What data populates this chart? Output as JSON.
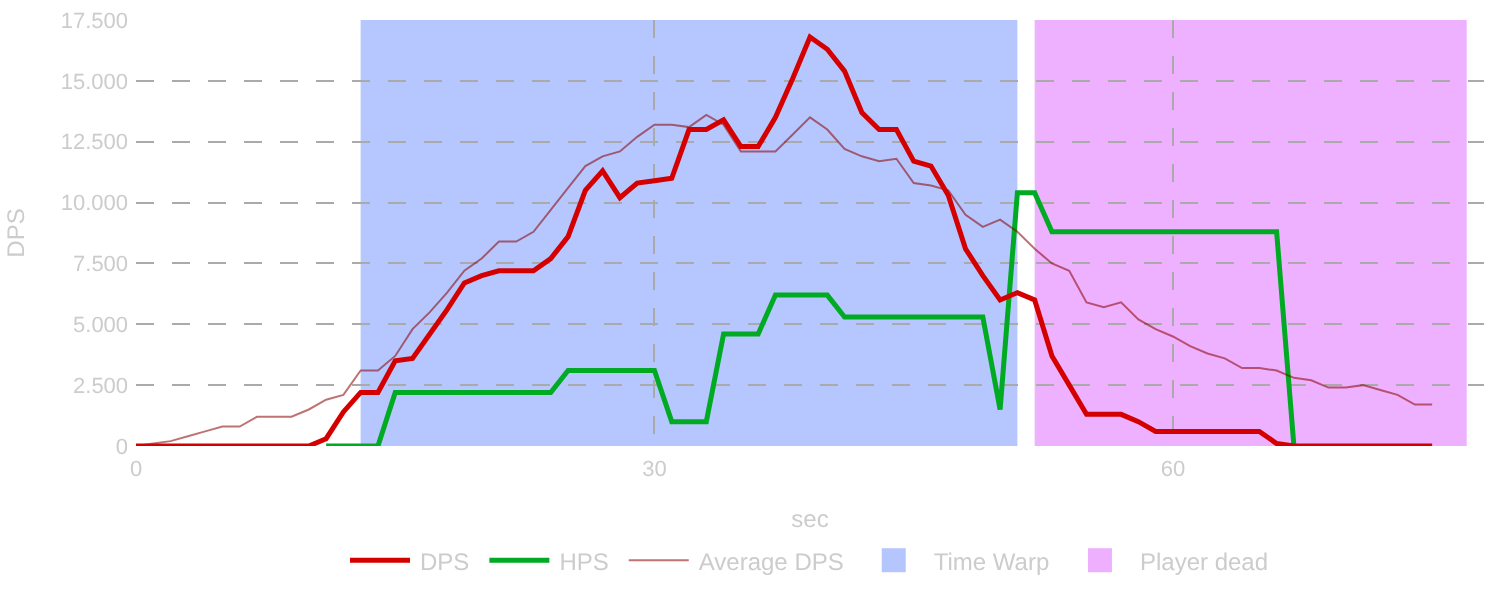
{
  "chart_data": {
    "type": "line",
    "xlabel": "sec",
    "ylabel": "DPS",
    "x": [
      0,
      1,
      2,
      3,
      4,
      5,
      6,
      7,
      8,
      9,
      10,
      11,
      12,
      13,
      14,
      15,
      16,
      17,
      18,
      19,
      20,
      21,
      22,
      23,
      24,
      25,
      26,
      27,
      28,
      29,
      30,
      31,
      32,
      33,
      34,
      35,
      36,
      37,
      38,
      39,
      40,
      41,
      42,
      43,
      44,
      45,
      46,
      47,
      48,
      49,
      50,
      51,
      52,
      53,
      54,
      55,
      56,
      57,
      58,
      59,
      60,
      61,
      62,
      63,
      64,
      65,
      66,
      67,
      68,
      69,
      70,
      71,
      72,
      73,
      74,
      75
    ],
    "series": [
      {
        "name": "DPS",
        "color": "#d40000",
        "values": [
          0,
          0,
          0,
          0,
          0,
          0,
          0,
          0,
          0,
          0,
          0,
          300,
          1400,
          2200,
          2200,
          3500,
          3600,
          4600,
          5600,
          6700,
          7000,
          7200,
          7200,
          7200,
          7700,
          8600,
          10500,
          11300,
          10200,
          10800,
          10900,
          11000,
          13000,
          13000,
          13400,
          12300,
          12300,
          13500,
          15100,
          16800,
          16300,
          15400,
          13700,
          13000,
          13000,
          11700,
          11500,
          10300,
          8100,
          7000,
          6000,
          6300,
          6000,
          3700,
          2500,
          1300,
          1300,
          1300,
          1000,
          600,
          600,
          600,
          600,
          600,
          600,
          600,
          100,
          0,
          0,
          0,
          0,
          0,
          0,
          0,
          0,
          0
        ]
      },
      {
        "name": "HPS",
        "color": "#00aa22",
        "values": [
          null,
          null,
          null,
          null,
          null,
          null,
          null,
          null,
          null,
          null,
          null,
          0,
          0,
          0,
          0,
          2200,
          2200,
          2200,
          2200,
          2200,
          2200,
          2200,
          2200,
          2200,
          2200,
          3100,
          3100,
          3100,
          3100,
          3100,
          3100,
          1000,
          1000,
          1000,
          4600,
          4600,
          4600,
          6200,
          6200,
          6200,
          6200,
          5300,
          5300,
          5300,
          5300,
          5300,
          5300,
          5300,
          5300,
          5300,
          1500,
          10400,
          10400,
          8800,
          8800,
          8800,
          8800,
          8800,
          8800,
          8800,
          8800,
          8800,
          8800,
          8800,
          8800,
          8800,
          8800,
          0,
          null,
          null,
          null,
          null,
          null,
          null,
          null,
          null
        ]
      },
      {
        "name": "Average DPS",
        "color": "#8b0000",
        "values": [
          0,
          100,
          200,
          400,
          600,
          800,
          800,
          1200,
          1200,
          1200,
          1500,
          1900,
          2100,
          3100,
          3100,
          3700,
          4800,
          5500,
          6300,
          7200,
          7700,
          8400,
          8400,
          8800,
          9700,
          10600,
          11500,
          11900,
          12100,
          12700,
          13200,
          13200,
          13100,
          13600,
          13200,
          12100,
          12100,
          12100,
          12800,
          13500,
          13000,
          12200,
          11900,
          11700,
          11800,
          10800,
          10700,
          10500,
          9500,
          9000,
          9300,
          8800,
          8100,
          7500,
          7200,
          5900,
          5700,
          5900,
          5200,
          4800,
          4500,
          4100,
          3800,
          3600,
          3200,
          3200,
          3100,
          2800,
          2700,
          2400,
          2400,
          2500,
          2300,
          2100,
          1700,
          1700
        ]
      }
    ],
    "bands": [
      {
        "axis": "x",
        "from": 13,
        "to": 51,
        "label": "Time Warp",
        "color": "#2255ff"
      },
      {
        "axis": "x",
        "from": 52,
        "to": 77,
        "label": "Player dead",
        "color": "#cc11ff"
      }
    ],
    "xlim": [
      0,
      78
    ],
    "xticks": [
      0,
      30,
      60
    ],
    "ylim": [
      0,
      17500
    ],
    "yticks": [
      0,
      {
        "value": 2500,
        "label": "2.500"
      },
      {
        "value": 5000,
        "label": "5.000"
      },
      {
        "value": 7500,
        "label": "7.500"
      },
      {
        "value": 10000,
        "label": "10.000"
      },
      {
        "value": 12500,
        "label": "12.500"
      },
      {
        "value": 15000,
        "label": "15.000"
      },
      {
        "value": 17500,
        "label": "17.500"
      }
    ],
    "grid": true,
    "legend": "bottom",
    "line_style": "solid"
  }
}
